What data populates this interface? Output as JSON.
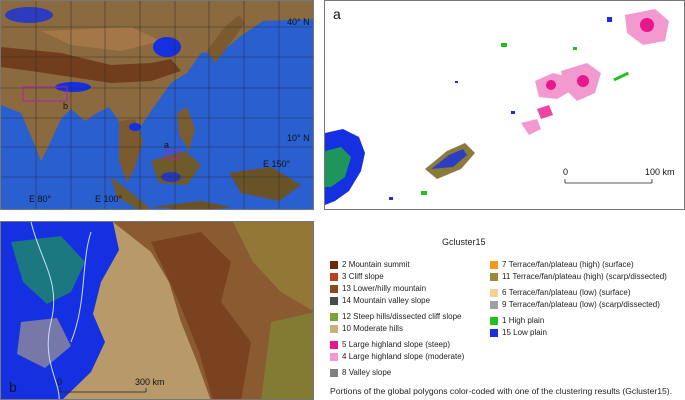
{
  "overview_map": {
    "lat_labels": [
      "40° N",
      "10° N"
    ],
    "lon_labels": [
      "E 80°",
      "E 100°",
      "E 150°"
    ],
    "box_labels": [
      "a",
      "b"
    ]
  },
  "panel_a": {
    "letter": "a",
    "scale_start": "0",
    "scale_end": "100 km"
  },
  "panel_b": {
    "letter": "b",
    "scale_start": "0",
    "scale_end": "300 km"
  },
  "legend": {
    "title": "Gcluster15",
    "items": [
      {
        "code": "2",
        "label": "Mountain summit",
        "color": "#6b2a10"
      },
      {
        "code": "3",
        "label": "Cliff slope",
        "color": "#b5431e"
      },
      {
        "code": "13",
        "label": "Lower/hilly mountain",
        "color": "#8b4a1c"
      },
      {
        "code": "14",
        "label": "Mountain valley slope",
        "color": "#4a4a4a"
      },
      {
        "code": "12",
        "label": "Steep hills/dissected cliff slope",
        "color": "#7ba33a"
      },
      {
        "code": "10",
        "label": "Moderate hills",
        "color": "#c8b27a"
      },
      {
        "code": "5",
        "label": "Large highland slope (steep)",
        "color": "#e8178a"
      },
      {
        "code": "4",
        "label": "Large highland slope (moderate)",
        "color": "#f29ad0"
      },
      {
        "code": "8",
        "label": "Valley slope",
        "color": "#808080"
      },
      {
        "code": "7",
        "label": "Terrace/fan/plateau (high) (surface)",
        "color": "#f29a1c"
      },
      {
        "code": "11",
        "label": "Terrace/fan/plateau (high) (scarp/dissected)",
        "color": "#9a8a3c"
      },
      {
        "code": "6",
        "label": "Terrace/fan/plateau (low) (surface)",
        "color": "#f2d19a"
      },
      {
        "code": "9",
        "label": "Terrace/fan/plateau (low) (scarp/dissected)",
        "color": "#a0a0a0"
      },
      {
        "code": "1",
        "label": "High plain",
        "color": "#22c022"
      },
      {
        "code": "15",
        "label": "Low plain",
        "color": "#1530e0"
      }
    ]
  },
  "caption": "Portions of the global polygons color-coded with one of the clustering results (Gcluster15)."
}
